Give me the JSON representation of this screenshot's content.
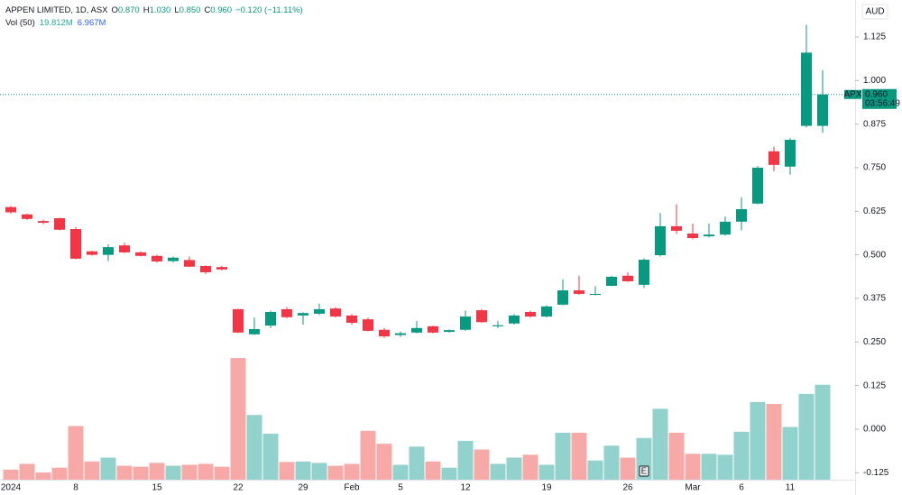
{
  "chart_data": {
    "type": "candlestick",
    "title": "APPEN LIMITED, 1D, ASX",
    "header": {
      "o": "O",
      "open": "0.870",
      "h": "H",
      "high": "1.030",
      "l": "L",
      "low": "0.850",
      "c": "C",
      "close": "0.960",
      "change": "−0.120 (−11.11%)"
    },
    "volume_header": {
      "name": "Vol (50)",
      "value": "19.812M",
      "ma": "6.967M"
    },
    "currency": "AUD",
    "symbol": "APX",
    "countdown": "03:56:49",
    "event": "E",
    "categories": [
      "2024",
      null,
      null,
      null,
      "8",
      null,
      null,
      null,
      null,
      "15",
      null,
      null,
      null,
      null,
      "22",
      null,
      null,
      null,
      "29",
      null,
      null,
      "Feb",
      null,
      null,
      "5",
      null,
      null,
      null,
      "12",
      null,
      null,
      null,
      null,
      "19",
      null,
      null,
      null,
      null,
      "26",
      null,
      null,
      null,
      "Mar",
      null,
      null,
      "6",
      null,
      null,
      "11",
      null,
      null
    ],
    "candles": {
      "open": [
        0.637,
        0.616,
        0.597,
        0.605,
        0.574,
        0.51,
        0.5,
        0.527,
        0.507,
        0.497,
        0.482,
        0.485,
        0.468,
        0.465,
        0.344,
        0.272,
        0.297,
        0.344,
        0.326,
        0.331,
        0.346,
        0.326,
        0.315,
        0.285,
        0.27,
        0.277,
        0.295,
        0.279,
        0.285,
        0.341,
        0.295,
        0.303,
        0.336,
        0.323,
        0.357,
        0.398,
        0.385,
        0.411,
        0.44,
        0.414,
        0.499,
        0.582,
        0.561,
        0.553,
        0.558,
        0.595,
        0.647,
        0.797,
        0.753,
        0.87,
        0.87
      ],
      "high": [
        0.64,
        0.618,
        0.601,
        0.607,
        0.58,
        0.512,
        0.53,
        0.535,
        0.51,
        0.5,
        0.495,
        0.495,
        0.47,
        0.468,
        0.345,
        0.32,
        0.34,
        0.35,
        0.335,
        0.36,
        0.35,
        0.33,
        0.32,
        0.29,
        0.28,
        0.31,
        0.297,
        0.286,
        0.34,
        0.345,
        0.31,
        0.33,
        0.34,
        0.355,
        0.43,
        0.44,
        0.41,
        0.44,
        0.45,
        0.49,
        0.62,
        0.645,
        0.59,
        0.59,
        0.61,
        0.665,
        0.755,
        0.81,
        0.835,
        1.16,
        1.03
      ],
      "low": [
        0.618,
        0.6,
        0.588,
        0.57,
        0.487,
        0.497,
        0.482,
        0.505,
        0.495,
        0.477,
        0.478,
        0.465,
        0.445,
        0.455,
        0.276,
        0.27,
        0.29,
        0.318,
        0.3,
        0.328,
        0.32,
        0.3,
        0.28,
        0.262,
        0.265,
        0.275,
        0.275,
        0.277,
        0.282,
        0.305,
        0.29,
        0.3,
        0.32,
        0.32,
        0.355,
        0.385,
        0.384,
        0.41,
        0.422,
        0.405,
        0.495,
        0.56,
        0.545,
        0.55,
        0.555,
        0.57,
        0.645,
        0.74,
        0.73,
        0.865,
        0.85
      ],
      "close": [
        0.622,
        0.603,
        0.592,
        0.572,
        0.489,
        0.5,
        0.522,
        0.507,
        0.497,
        0.481,
        0.492,
        0.466,
        0.45,
        0.458,
        0.277,
        0.287,
        0.336,
        0.321,
        0.333,
        0.344,
        0.323,
        0.305,
        0.282,
        0.266,
        0.275,
        0.29,
        0.277,
        0.284,
        0.323,
        0.307,
        0.298,
        0.326,
        0.323,
        0.352,
        0.398,
        0.388,
        0.388,
        0.437,
        0.424,
        0.486,
        0.582,
        0.569,
        0.548,
        0.558,
        0.595,
        0.631,
        0.75,
        0.758,
        0.83,
        1.08,
        0.96
      ]
    },
    "volume": [
      2.1,
      3.3,
      1.5,
      2.5,
      11.2,
      3.8,
      4.6,
      2.9,
      2.7,
      3.5,
      2.9,
      3.1,
      3.3,
      2.7,
      25.4,
      13.5,
      9.6,
      3.7,
      3.8,
      3.5,
      2.9,
      3.3,
      10.2,
      7.5,
      3.1,
      6.9,
      3.8,
      2.5,
      8.1,
      6.3,
      3.3,
      4.6,
      5.2,
      3.1,
      9.8,
      9.8,
      4.0,
      7.1,
      4.6,
      8.7,
      14.8,
      9.8,
      5.4,
      5.4,
      5.2,
      10.0,
      16.2,
      15.8,
      11.0,
      17.9,
      19.812
    ],
    "ylim": [
      -0.145,
      1.231
    ],
    "yticks": [
      -0.125,
      {
        "value": 0,
        "label": "0.000"
      },
      0.125,
      {
        "value": 0.25,
        "label": "0.250"
      },
      0.375,
      {
        "value": 0.5,
        "label": "0.500"
      },
      0.625,
      {
        "value": 0.75,
        "label": "0.750"
      },
      0.875,
      {
        "value": 1,
        "label": "1.000"
      },
      1.125
    ],
    "colors": {
      "up": "#089981",
      "down": "#f23645",
      "up_volume": "#92d2cc",
      "down_volume": "#f7a9a7"
    }
  }
}
